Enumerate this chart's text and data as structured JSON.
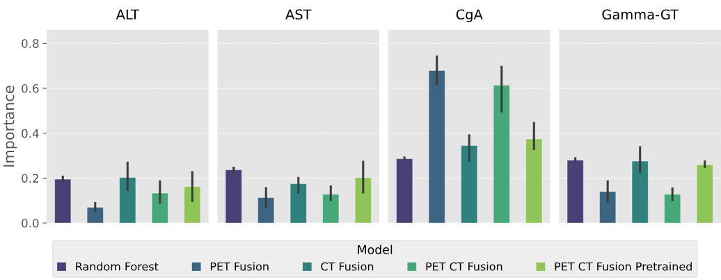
{
  "chart_data": {
    "type": "bar",
    "ylabel": "Importance",
    "categories": [
      "ALT",
      "AST",
      "CgA",
      "Gamma-GT"
    ],
    "ylim": [
      0,
      0.86
    ],
    "yticks": [
      {
        "value": 0,
        "label": "0.0"
      },
      0.2,
      0.4,
      0.6,
      0.8
    ],
    "grid": "y",
    "legend": "bottom",
    "bands": [
      {
        "axis": "x",
        "from": "ALT",
        "to": "ALT",
        "color": "#e5e5e5"
      },
      {
        "axis": "x",
        "from": "AST",
        "to": "AST",
        "color": "#e5e5e5"
      },
      {
        "axis": "x",
        "from": "CgA",
        "to": "CgA",
        "color": "#e5e5e5"
      },
      {
        "axis": "x",
        "from": "Gamma-GT",
        "to": "Gamma-GT",
        "color": "#e5e5e5"
      }
    ],
    "legend_title": "Model",
    "series": [
      {
        "name": "Random Forest",
        "color": "#4a4076",
        "values": [
          0.195,
          0.237,
          0.286,
          0.28
        ],
        "errors": [
          [
            0.183,
            0.211
          ],
          [
            0.223,
            0.251
          ],
          [
            0.278,
            0.296
          ],
          [
            0.271,
            0.293
          ]
        ]
      },
      {
        "name": "PET Fusion",
        "color": "#3d6581",
        "values": [
          0.07,
          0.113,
          0.679,
          0.14
        ],
        "errors": [
          [
            0.048,
            0.093
          ],
          [
            0.067,
            0.16
          ],
          [
            0.615,
            0.746
          ],
          [
            0.091,
            0.19
          ]
        ]
      },
      {
        "name": "CT Fusion",
        "color": "#2e817c",
        "values": [
          0.203,
          0.175,
          0.345,
          0.275
        ],
        "errors": [
          [
            0.143,
            0.273
          ],
          [
            0.132,
            0.205
          ],
          [
            0.273,
            0.395
          ],
          [
            0.223,
            0.342
          ]
        ]
      },
      {
        "name": "PET CT Fusion",
        "color": "#46a877",
        "values": [
          0.133,
          0.128,
          0.613,
          0.128
        ],
        "errors": [
          [
            0.087,
            0.19
          ],
          [
            0.098,
            0.168
          ],
          [
            0.492,
            0.7
          ],
          [
            0.098,
            0.159
          ]
        ]
      },
      {
        "name": "PET CT Fusion Pretrained",
        "color": "#8fc556",
        "values": [
          0.162,
          0.202,
          0.374,
          0.26
        ],
        "errors": [
          [
            0.094,
            0.231
          ],
          [
            0.132,
            0.277
          ],
          [
            0.325,
            0.45
          ],
          [
            0.245,
            0.279
          ]
        ]
      }
    ]
  }
}
